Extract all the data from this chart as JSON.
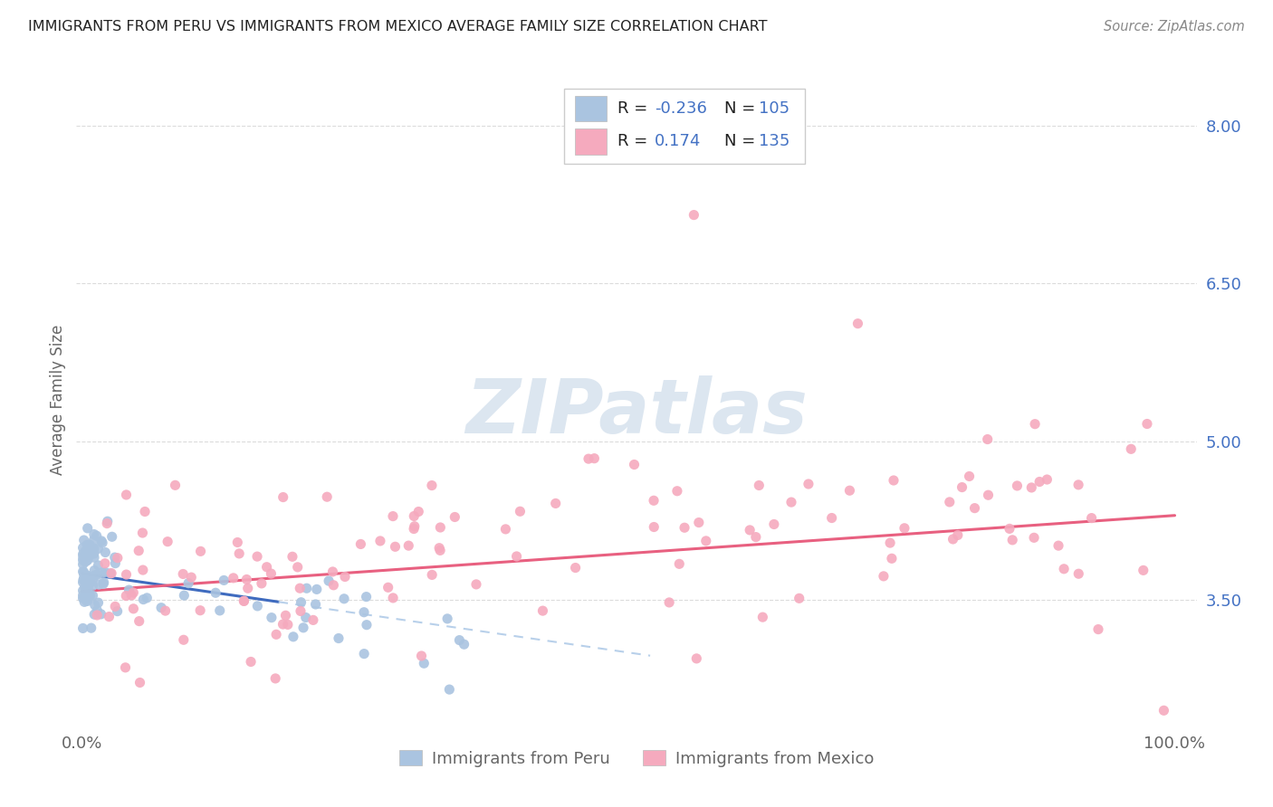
{
  "title": "IMMIGRANTS FROM PERU VS IMMIGRANTS FROM MEXICO AVERAGE FAMILY SIZE CORRELATION CHART",
  "source": "Source: ZipAtlas.com",
  "ylabel": "Average Family Size",
  "yticks": [
    3.5,
    5.0,
    6.5,
    8.0
  ],
  "ymin": 2.3,
  "ymax": 8.5,
  "xmin": -0.005,
  "xmax": 1.02,
  "peru_color": "#aac4e0",
  "mexico_color": "#f5aabe",
  "peru_line_color": "#3f6bbf",
  "mexico_line_color": "#e86080",
  "peru_line_dash_color": "#b8d0ea",
  "right_axis_color": "#4472c4",
  "background_color": "#ffffff",
  "grid_color": "#d8d8d8",
  "watermark_color": "#dce6f0",
  "title_color": "#222222",
  "source_color": "#888888",
  "label_color": "#666666",
  "legend_text_color": "#222222",
  "legend_value_color": "#4472c4"
}
